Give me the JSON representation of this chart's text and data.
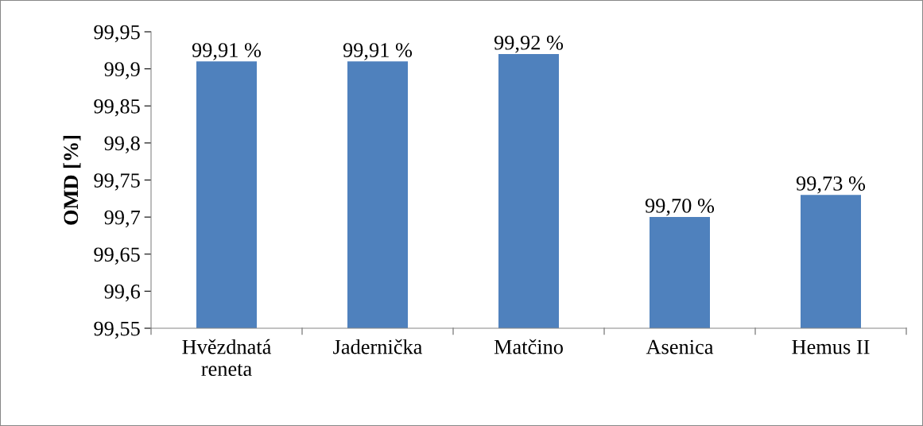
{
  "chart_data": {
    "type": "bar",
    "ylabel": "OMD [%]",
    "categories": [
      "Hvězdnatá\nreneta",
      "Jadernička",
      "Matčino",
      "Asenica",
      "Hemus II"
    ],
    "values": [
      99.91,
      99.91,
      99.92,
      99.7,
      99.73
    ],
    "value_labels": [
      "99,91 %",
      "99,91 %",
      "99,92 %",
      "99,70 %",
      "99,73 %"
    ],
    "color": "#4f81bd",
    "ylim": [
      99.55,
      99.95
    ],
    "yticks": [
      {
        "value": 99.55,
        "label": "99,55"
      },
      {
        "value": 99.6,
        "label": "99,6"
      },
      {
        "value": 99.65,
        "label": "99,65"
      },
      {
        "value": 99.7,
        "label": "99,7"
      },
      {
        "value": 99.75,
        "label": "99,75"
      },
      {
        "value": 99.8,
        "label": "99,8"
      },
      {
        "value": 99.85,
        "label": "99,85"
      },
      {
        "value": 99.9,
        "label": "99,9"
      },
      {
        "value": 99.95,
        "label": "99,95"
      }
    ],
    "grid": false,
    "legend": false
  }
}
